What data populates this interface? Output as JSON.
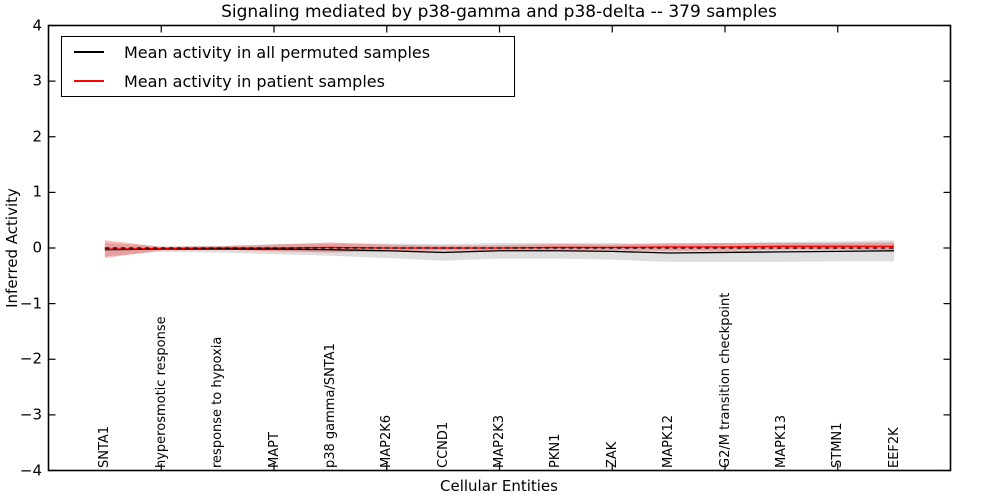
{
  "title": "Signaling mediated by p38-gamma and p38-delta -- 379 samples",
  "axes": {
    "xlabel": "Cellular Entities",
    "ylabel": "Inferred Activity"
  },
  "legend": {
    "position": "upper left",
    "items": [
      {
        "label": "Mean activity in all permuted samples",
        "color": "#000000"
      },
      {
        "label": "Mean activity in patient samples",
        "color": "#ff0000"
      }
    ]
  },
  "chart_data": {
    "type": "line",
    "title": "Signaling mediated by p38-gamma and p38-delta -- 379 samples",
    "xlabel": "Cellular Entities",
    "ylabel": "Inferred Activity",
    "grid": false,
    "legend_position": "upper left",
    "xlim": [
      -1,
      15
    ],
    "ylim": [
      -4,
      4
    ],
    "yticks": [
      -4,
      -3,
      -2,
      -1,
      0,
      1,
      2,
      3,
      4
    ],
    "xtick_positions": [
      1,
      3,
      5,
      7,
      9,
      11,
      13
    ],
    "categories": [
      "SNTA1",
      "hyperosmotic response",
      "response to hypoxia",
      "MAPT",
      "p38 gamma/SNTA1",
      "MAP2K6",
      "CCND1",
      "MAP2K3",
      "PKN1",
      "ZAK",
      "MAPK12",
      "G2/M transition checkpoint",
      "MAPK13",
      "STMN1",
      "EEF2K"
    ],
    "series": [
      {
        "name": "Mean activity in all permuted samples",
        "line_color": "#000000",
        "line_style": "solid",
        "values": [
          -0.03,
          -0.02,
          -0.02,
          -0.02,
          -0.03,
          -0.05,
          -0.08,
          -0.05,
          -0.05,
          -0.06,
          -0.09,
          -0.08,
          -0.07,
          -0.06,
          -0.05
        ],
        "band_std": [
          0.12,
          0.05,
          0.06,
          0.09,
          0.11,
          0.13,
          0.15,
          0.14,
          0.14,
          0.15,
          0.16,
          0.17,
          0.18,
          0.18,
          0.19
        ],
        "band_color": "rgba(0,0,0,0.13)"
      },
      {
        "name": "Mean activity in patient samples",
        "line_color": "#ff0000",
        "line_style": "solid",
        "values": [
          -0.02,
          -0.01,
          0.0,
          0.0,
          0.01,
          0.0,
          0.0,
          0.0,
          0.01,
          0.01,
          0.02,
          0.02,
          0.03,
          0.03,
          0.03
        ],
        "band_std": [
          0.16,
          0.03,
          0.03,
          0.06,
          0.09,
          0.06,
          0.04,
          0.05,
          0.06,
          0.05,
          0.07,
          0.07,
          0.06,
          0.06,
          0.07
        ],
        "band_color": "rgba(255,0,0,0.28)"
      }
    ],
    "reference_line": {
      "y": 0,
      "color": "#000000",
      "style": "dashed"
    }
  }
}
